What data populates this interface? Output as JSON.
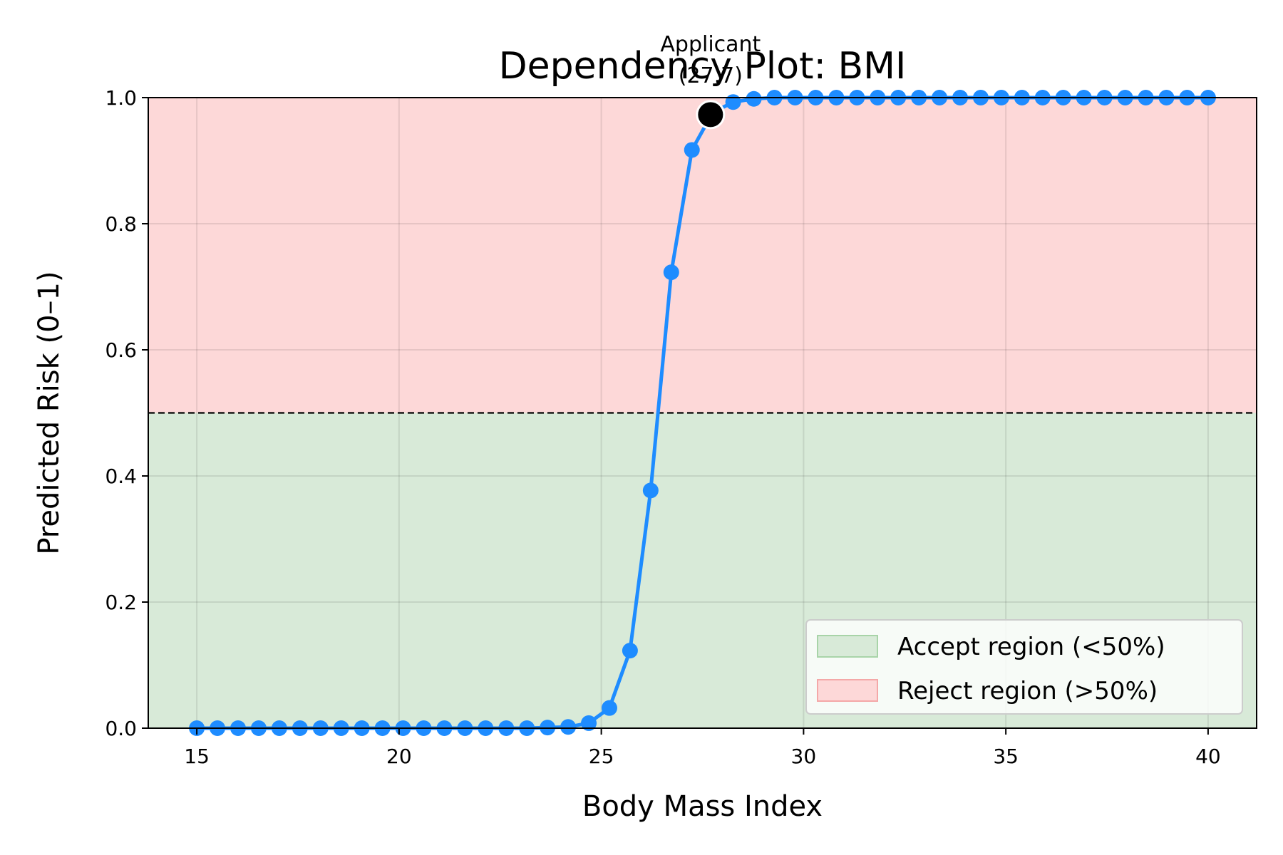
{
  "chart_data": {
    "type": "line",
    "title": "Dependency Plot: BMI",
    "xlabel": "Body Mass Index",
    "ylabel": "Predicted Risk (0–1)",
    "xlim": [
      13.8,
      41.2
    ],
    "ylim": [
      0.0,
      1.0
    ],
    "x_ticks": [
      15,
      20,
      25,
      30,
      35,
      40
    ],
    "x_tick_labels": [
      "15",
      "20",
      "25",
      "30",
      "35",
      "40"
    ],
    "y_ticks": [
      0.0,
      0.2,
      0.4,
      0.6,
      0.8,
      1.0
    ],
    "y_tick_labels": [
      "0.0",
      "0.2",
      "0.4",
      "0.6",
      "0.8",
      "1.0"
    ],
    "grid": true,
    "threshold": 0.5,
    "regions": [
      {
        "name": "Accept region (<50%)",
        "from": 0.0,
        "to": 0.5,
        "color": "#d8ead8"
      },
      {
        "name": "Reject region (>50%)",
        "from": 0.5,
        "to": 1.0,
        "color": "#fdd8d8"
      }
    ],
    "series": [
      {
        "color": "#1e8cff",
        "x": [
          15.0,
          15.51,
          16.02,
          16.53,
          17.04,
          17.55,
          18.06,
          18.57,
          19.08,
          19.59,
          20.1,
          20.61,
          21.12,
          21.63,
          22.14,
          22.65,
          23.16,
          23.67,
          24.18,
          24.69,
          25.2,
          25.71,
          26.22,
          26.73,
          27.24,
          27.75,
          28.26,
          28.77,
          29.28,
          29.79,
          30.3,
          30.81,
          31.32,
          31.83,
          32.34,
          32.85,
          33.36,
          33.87,
          34.38,
          34.89,
          35.4,
          35.91,
          36.42,
          36.93,
          37.44,
          37.95,
          38.46,
          38.97,
          39.48,
          40.0
        ],
        "values": [
          0.0,
          0.0,
          0.0,
          0.0,
          0.0,
          0.0,
          0.0,
          0.0,
          0.0,
          0.0,
          0.0,
          0.0,
          0.0,
          0.0,
          0.0,
          0.0,
          0.0,
          0.001,
          0.002,
          0.008,
          0.032,
          0.123,
          0.377,
          0.723,
          0.917,
          0.976,
          0.993,
          0.998,
          1.0,
          1.0,
          1.0,
          1.0,
          1.0,
          1.0,
          1.0,
          1.0,
          1.0,
          1.0,
          1.0,
          1.0,
          1.0,
          1.0,
          1.0,
          1.0,
          1.0,
          1.0,
          1.0,
          1.0,
          1.0,
          1.0
        ]
      }
    ],
    "applicant": {
      "x": 27.7,
      "y": 0.973,
      "label_line1": "Applicant",
      "label_line2": "(27.7)"
    },
    "legend": {
      "placement": "lower-right",
      "entries": [
        {
          "label": "Accept region (<50%)",
          "color": "#d8ead8",
          "edge": "#a8d4a8"
        },
        {
          "label": "Reject region (>50%)",
          "color": "#fdd8d8",
          "edge": "#f4a8a8"
        }
      ]
    }
  }
}
